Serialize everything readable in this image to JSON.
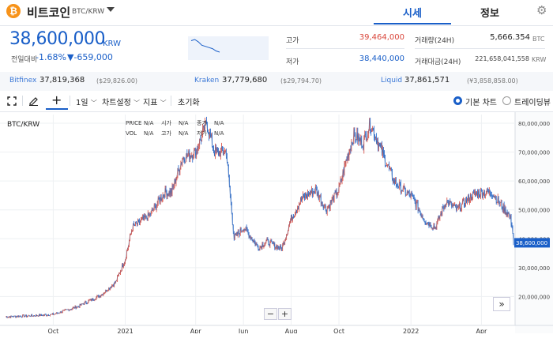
{
  "header": {
    "coin_icon": "₿",
    "coin_name": "비트코인",
    "pair": "BTC/KRW",
    "tab_market": "시세",
    "tab_info": "정보"
  },
  "ticker": {
    "price": "38,600,000",
    "unit": "KRW",
    "change_label": "전일대비",
    "change_rate": "-1.68%",
    "change_amount": "▼-659,000"
  },
  "stats": {
    "high_label": "고가",
    "high_value": "39,464,000",
    "low_label": "저가",
    "low_value": "38,440,000",
    "volume_label": "거래량(24H)",
    "volume_value": "5,666.354",
    "volume_unit": "BTC",
    "turnover_label": "거래대금(24H)",
    "turnover_value": "221,658,041,558",
    "turnover_unit": "KRW"
  },
  "exchanges": [
    {
      "name": "Bitfinex",
      "price": "37,819,368",
      "sub": "($29,826.00)"
    },
    {
      "name": "Kraken",
      "price": "37,779,680",
      "sub": "($29,794.70)"
    },
    {
      "name": "Liquid",
      "price": "37,861,571",
      "sub": "(¥3,858,858.00)"
    }
  ],
  "toolbar": {
    "period": "1일",
    "chart_settings": "차트설정",
    "indicators": "지표",
    "reset": "초기화",
    "basic_chart": "기본 차트",
    "tradingview": "트레이딩뷰"
  },
  "legend": {
    "price_label": "PRICE",
    "price_val": "N/A",
    "open_label": "시가",
    "open_val": "N/A",
    "close_label": "종가",
    "close_val": "N/A",
    "vol_label": "VOL",
    "vol_val": "N/A",
    "high_label": "고가",
    "high_val": "N/A",
    "low_label": "저가",
    "low_val": "N/A"
  },
  "colors": {
    "accent": "#1a5fc8",
    "up": "#d9463b",
    "down": "#1a5fc8",
    "high_value": "#d9463b"
  },
  "icons": [
    "bitcoin-icon",
    "gear-icon",
    "crosshair-icon",
    "pencil-icon",
    "plus-icon",
    "double-chevron-right-icon"
  ],
  "chart_data": {
    "type": "line",
    "title": "BTC/KRW",
    "x_dates": [
      "2020-08-01",
      "2020-09-01",
      "2020-10-01",
      "2020-11-01",
      "2020-12-01",
      "2020-12-20",
      "2021-01-01",
      "2021-01-10",
      "2021-02-01",
      "2021-02-20",
      "2021-03-01",
      "2021-03-15",
      "2021-04-01",
      "2021-04-15",
      "2021-04-25",
      "2021-05-10",
      "2021-05-20",
      "2021-06-01",
      "2021-06-20",
      "2021-07-01",
      "2021-07-20",
      "2021-08-01",
      "2021-08-15",
      "2021-09-01",
      "2021-09-15",
      "2021-10-01",
      "2021-10-10",
      "2021-10-20",
      "2021-11-01",
      "2021-11-10",
      "2021-11-25",
      "2021-12-10",
      "2021-12-25",
      "2022-01-01",
      "2022-01-20",
      "2022-02-01",
      "2022-02-15",
      "2022-03-01",
      "2022-03-20",
      "2022-04-01",
      "2022-04-15",
      "2022-04-30",
      "2022-05-05",
      "2022-05-10",
      "2022-05-12"
    ],
    "y_values": [
      13000000,
      13300000,
      13800000,
      16500000,
      20500000,
      25000000,
      33000000,
      44000000,
      48000000,
      56000000,
      56000000,
      68000000,
      70000000,
      80000000,
      70000000,
      70000000,
      40000000,
      44000000,
      37000000,
      39000000,
      36500000,
      47000000,
      54000000,
      57000000,
      50000000,
      57000000,
      67000000,
      76000000,
      73000000,
      80000000,
      70000000,
      60000000,
      56000000,
      55000000,
      46000000,
      44000000,
      53000000,
      50000000,
      55000000,
      56000000,
      56000000,
      50000000,
      49000000,
      45000000,
      38600000
    ],
    "ylim": [
      10000000,
      83000000
    ],
    "y_ticks": [
      "80,000,000",
      "70,000,000",
      "60,000,000",
      "50,000,000",
      "40,000,000",
      "30,000,000",
      "20,000,000"
    ],
    "y_tick_values": [
      80000000,
      70000000,
      60000000,
      50000000,
      40000000,
      30000000,
      20000000
    ],
    "x_ticks": [
      "Oct",
      "2021",
      "Apr",
      "Jun",
      "Aug",
      "Oct",
      "2022",
      "Apr"
    ],
    "x_tick_dates": [
      "2020-10-01",
      "2021-01-01",
      "2021-04-01",
      "2021-06-01",
      "2021-08-01",
      "2021-10-01",
      "2022-01-01",
      "2022-04-01"
    ],
    "current_price_label": "38,600,000",
    "current_price": 38600000,
    "grid": true
  },
  "sparkline": {
    "y_values": [
      10,
      9,
      11,
      14,
      15,
      16,
      17,
      19,
      20
    ]
  }
}
